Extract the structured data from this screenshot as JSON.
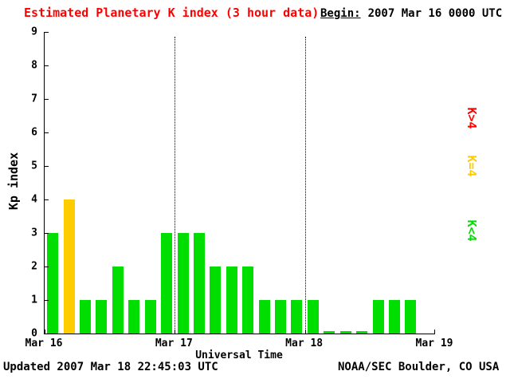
{
  "title": "Estimated Planetary K index (3 hour data)",
  "begin": {
    "label": "Begin:",
    "value": "2007 Mar 16 0000 UTC"
  },
  "axes": {
    "ylabel": "Kp index",
    "xlabel": "Universal Time",
    "yticks": [
      0,
      1,
      2,
      3,
      4,
      5,
      6,
      7,
      8,
      9
    ],
    "xticks": [
      "Mar 16",
      "Mar 17",
      "Mar 18",
      "Mar 19"
    ]
  },
  "legend": [
    {
      "key": "k-gt-4",
      "label": "K>4",
      "color": "#ff0000"
    },
    {
      "key": "k-eq-4",
      "label": "K=4",
      "color": "#ffcc00"
    },
    {
      "key": "k-lt-4",
      "label": "K<4",
      "color": "#00dd00"
    }
  ],
  "colors": {
    "title": "#ff0000",
    "red": "#ff0000",
    "yellow": "#ffcc00",
    "green": "#00dd00"
  },
  "footer": {
    "updated": "Updated 2007 Mar 18 22:45:03 UTC",
    "source": "NOAA/SEC Boulder, CO USA"
  },
  "chart_data": {
    "type": "bar",
    "title": "Estimated Planetary K index (3 hour data)",
    "xlabel": "Universal Time",
    "ylabel": "Kp index",
    "ylim": [
      0,
      9
    ],
    "begin": "2007 Mar 16 0000 UTC",
    "slots_per_day": 8,
    "slot_hours": 3,
    "day_labels": [
      "Mar 16",
      "Mar 17",
      "Mar 18",
      "Mar 19"
    ],
    "values": [
      3,
      4,
      1,
      1,
      2,
      1,
      1,
      3,
      3,
      3,
      2,
      2,
      2,
      1,
      1,
      1,
      1,
      0,
      0,
      0,
      1,
      1,
      1
    ],
    "color_rule": "green if K<4, yellow if K=4, red if K>4",
    "grid": "vertical dotted lines at day boundaries",
    "legend_position": "right, rotated"
  }
}
